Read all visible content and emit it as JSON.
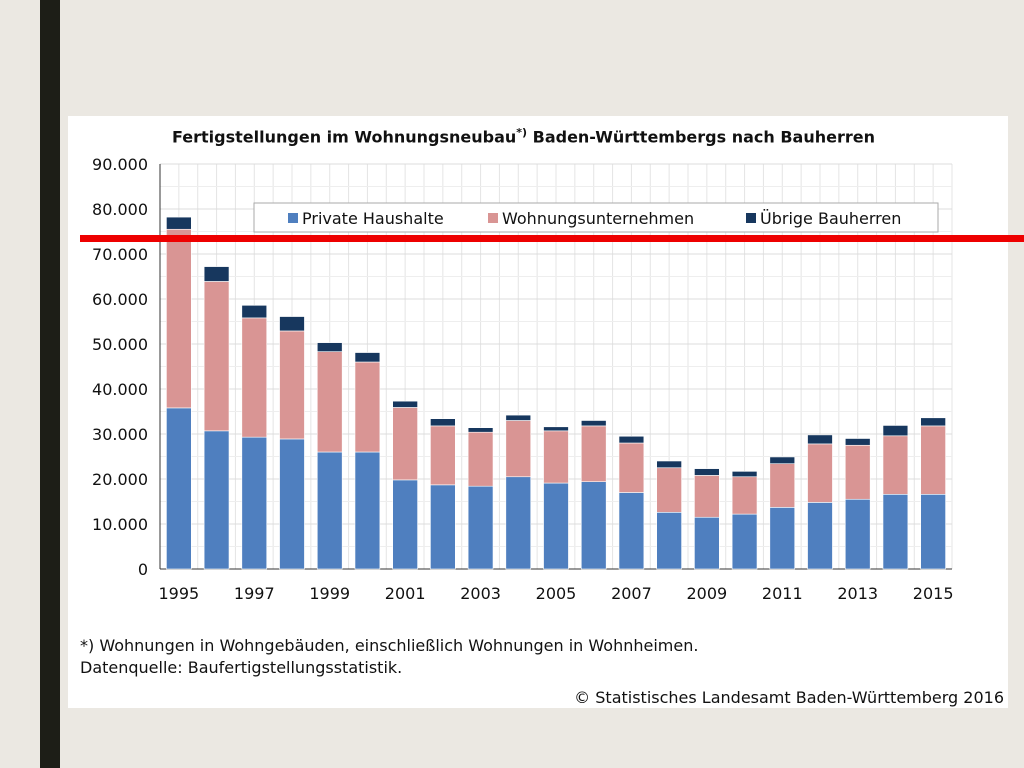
{
  "slide": {
    "title_main": "Fertigstellungen im Wohnungsneubau",
    "title_mark": "*)",
    "title_rest": " Baden-Württembergs nach Bauherren",
    "footnote": "*) Wohnungen in Wohngebäuden, einschließlich Wohnungen in Wohnheimen.",
    "source": "Datenquelle: Baufertigstellungsstatistik.",
    "copyright": "© Statistisches Landesamt Baden-Württemberg 2016",
    "marker_color": "#ee0000"
  },
  "chart_data": {
    "type": "bar",
    "stacked": true,
    "title": "Fertigstellungen im Wohnungsneubau*) Baden-Württembergs nach Bauherren",
    "categories": [
      "1995",
      "1996",
      "1997",
      "1998",
      "1999",
      "2000",
      "2001",
      "2002",
      "2003",
      "2004",
      "2005",
      "2006",
      "2007",
      "2008",
      "2009",
      "2010",
      "2011",
      "2012",
      "2013",
      "2014",
      "2015"
    ],
    "x_tick_labels": [
      "1995",
      "1997",
      "1999",
      "2001",
      "2003",
      "2005",
      "2007",
      "2009",
      "2011",
      "2013",
      "2015"
    ],
    "y_tick_labels": [
      "0",
      "10.000",
      "20.000",
      "30.000",
      "40.000",
      "50.000",
      "60.000",
      "70.000",
      "80.000",
      "90.000"
    ],
    "ylim": [
      0,
      90000
    ],
    "grid": true,
    "legend_position": "top",
    "series": [
      {
        "name": "Private Haushalte",
        "color": "#4f7fbf",
        "values": [
          35800,
          30700,
          29300,
          28900,
          26000,
          26000,
          19800,
          18700,
          18400,
          20500,
          19100,
          19400,
          17000,
          12600,
          11500,
          12200,
          13700,
          14800,
          15500,
          16600,
          16600
        ]
      },
      {
        "name": "Wohnungsunternehmen",
        "color": "#d99594",
        "values": [
          39700,
          33200,
          26500,
          24000,
          22300,
          20000,
          16100,
          13100,
          12000,
          12500,
          11600,
          12400,
          11000,
          9900,
          9300,
          8300,
          9700,
          13000,
          12000,
          13000,
          15200
        ]
      },
      {
        "name": "Übrige Bauherren",
        "color": "#17375e",
        "values": [
          2700,
          3300,
          2800,
          3200,
          2000,
          2100,
          1400,
          1600,
          1000,
          1200,
          900,
          1200,
          1500,
          1500,
          1500,
          1200,
          1500,
          2000,
          1500,
          2300,
          1800
        ]
      }
    ]
  }
}
